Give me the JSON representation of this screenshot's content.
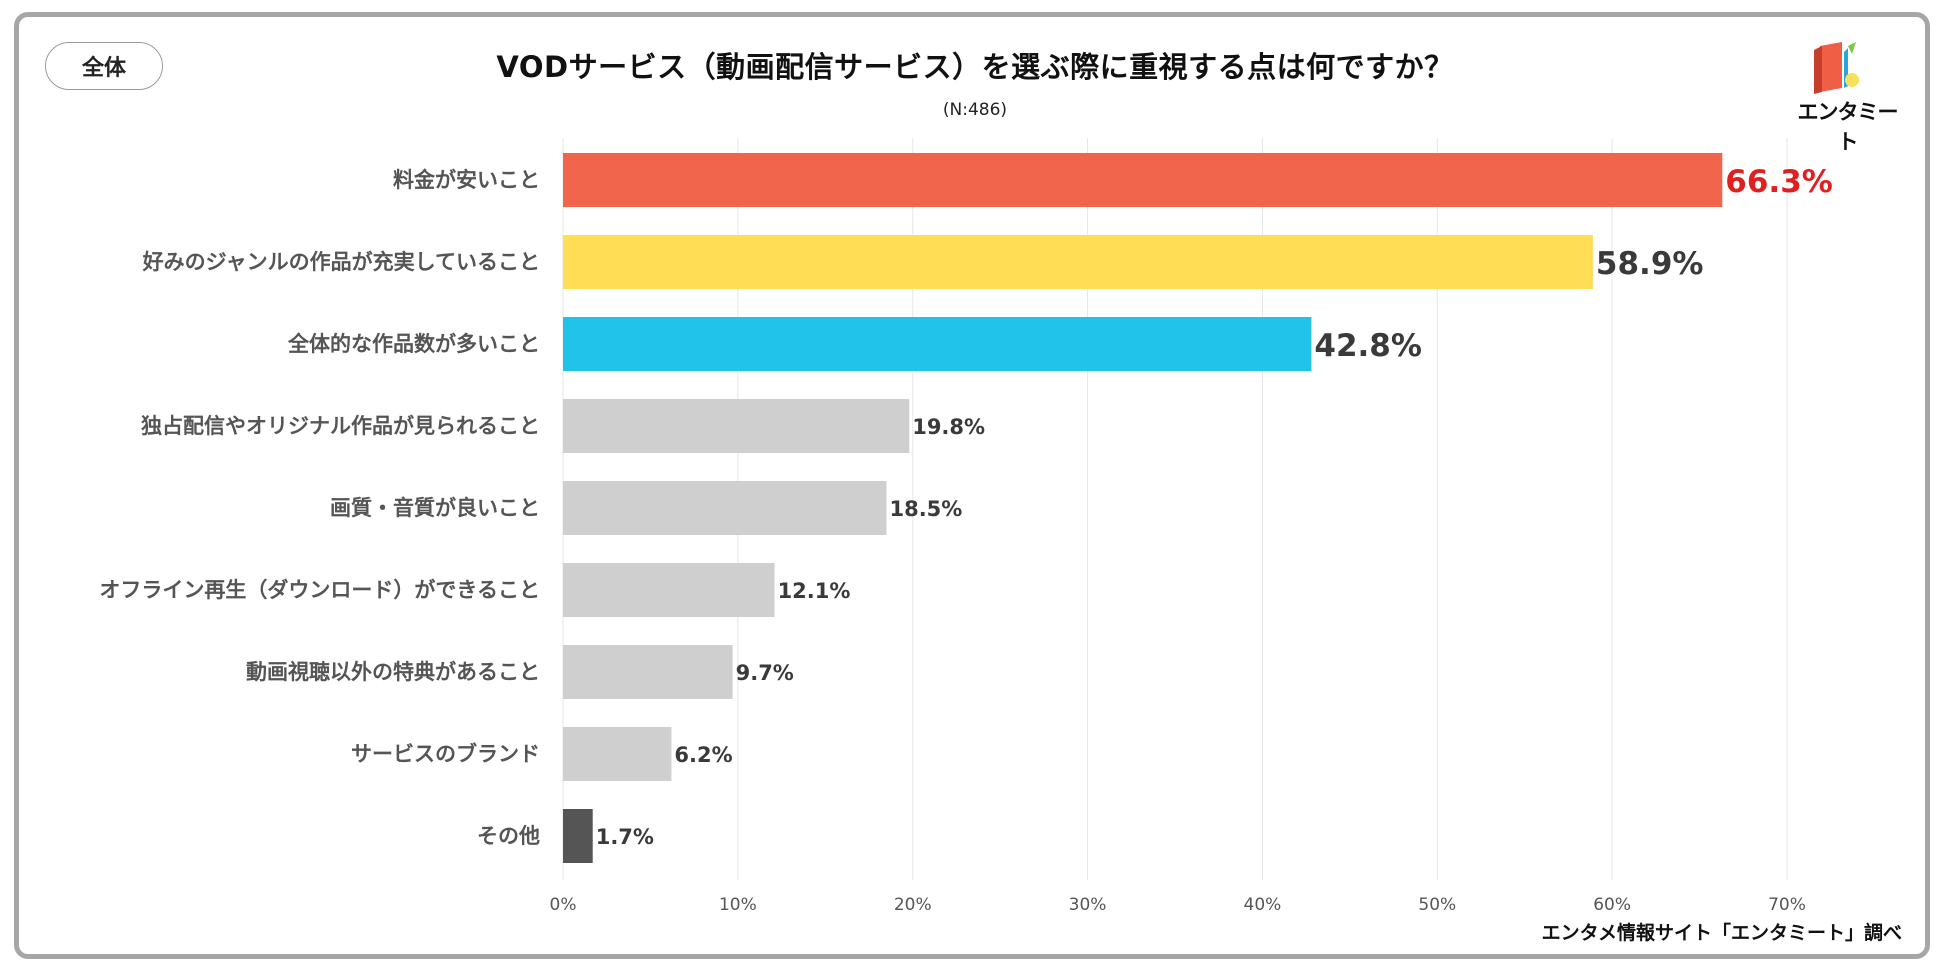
{
  "badge": "全体",
  "title": "VODサービス（動画配信サービス）を選ぶ際に重視する点は何ですか？",
  "subtitle": "(N:486)",
  "logo_text": "エンタミート",
  "source": "エンタメ情報サイト「エンタミート」調べ",
  "colors": {
    "top1": "#f0654c",
    "top2": "#ffdd55",
    "top3": "#22c3ea",
    "other": "#d0cfd0",
    "misc": "#555555",
    "highlight_label": "#e02020",
    "label": "#3a3a3a"
  },
  "chart_data": {
    "type": "bar",
    "orientation": "horizontal",
    "title": "VODサービス（動画配信サービス）を選ぶ際に重視する点は何ですか？",
    "xlabel": "",
    "ylabel": "",
    "xlim": [
      0,
      70
    ],
    "ticks": [
      "0%",
      "10%",
      "20%",
      "30%",
      "40%",
      "50%",
      "60%",
      "70%"
    ],
    "tick_values": [
      0,
      10,
      20,
      30,
      40,
      50,
      60,
      70
    ],
    "grid": true,
    "categories": [
      "料金が安いこと",
      "好みのジャンルの作品が充実していること",
      "全体的な作品数が多いこと",
      "独占配信やオリジナル作品が見られること",
      "画質・音質が良いこと",
      "オフライン再生（ダウンロード）ができること",
      "動画視聴以外の特典があること",
      "サービスのブランド",
      "その他"
    ],
    "values": [
      66.3,
      58.9,
      42.8,
      19.8,
      18.5,
      12.1,
      9.7,
      6.2,
      1.7
    ],
    "value_labels": [
      "66.3%",
      "58.9%",
      "42.8%",
      "19.8%",
      "18.5%",
      "12.1%",
      "9.7%",
      "6.2%",
      "1.7%"
    ]
  }
}
